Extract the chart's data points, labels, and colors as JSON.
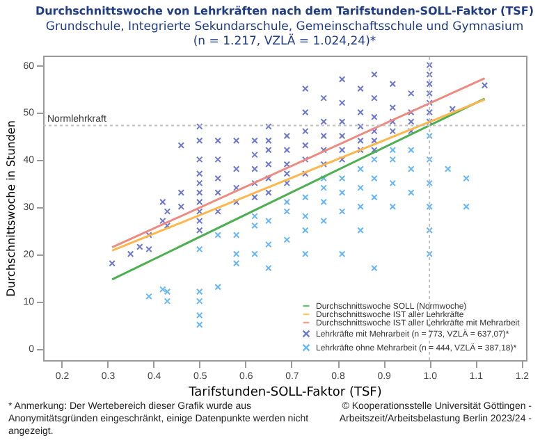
{
  "chart_data": {
    "type": "scatter",
    "title": "Durchschnittswoche  von Lehrkräften nach dem Tarifstunden-SOLL-Faktor  (TSF)",
    "subtitle": "Grundschule, Integrierte Sekundarschule, Gemeinschaftsschule  und Gymnasium\n(n = 1.217, VZLÄ = 1.024,24)*",
    "xlabel": "Tarifstunden-SOLL-Faktor (TSF)",
    "ylabel": "Durchschnittswoche in Stunden",
    "xlim": [
      0.16,
      1.21
    ],
    "ylim": [
      -2.5,
      62
    ],
    "xticks": [
      0.2,
      0.3,
      0.4,
      0.5,
      0.6,
      0.7,
      0.8,
      0.9,
      {
        "value": 1,
        "label": "1.0"
      },
      1.1,
      1.2
    ],
    "yticks": [
      0,
      10,
      20,
      30,
      40,
      50,
      60
    ],
    "grid": false,
    "legend": "bottom right",
    "line_style": "solid",
    "ref_lines": [
      {
        "axis": "y",
        "value": 47.2,
        "label": "Normlehrkraft",
        "color": "#c0c0c0",
        "line_style": "dotted"
      },
      {
        "axis": "x",
        "value": 1,
        "color": "#c0c0c0",
        "line_style": "dotted"
      }
    ],
    "series": [
      {
        "name": "Durchschnittswoche SOLL (Normwoche)",
        "type": "line",
        "color": "#4caf50",
        "x": [
          0.31,
          1.12
        ],
        "values": [
          14.6,
          52.9
        ]
      },
      {
        "name": "Durchschnittswoche IST aller Lehrkräfte",
        "type": "line",
        "color": "#ffb74d",
        "x": [
          0.31,
          1.12
        ],
        "values": [
          20.7,
          52.7
        ]
      },
      {
        "name": "Durchschnittswoche IST aller Lehrkräfte mit Mehrarbeit",
        "type": "line",
        "color": "#ef8a80",
        "x": [
          0.31,
          1.12
        ],
        "values": [
          21.4,
          57.2
        ]
      },
      {
        "name": "Lehrkräfte mit Mehrarbeit (n = 773, VZLÄ = 637,07)*",
        "marker": "cross",
        "color": "#4857c0",
        "x": [
          0.31,
          0.35,
          0.37,
          0.39,
          0.39,
          0.42,
          0.42,
          0.43,
          0.43,
          0.46,
          0.46,
          0.46,
          0.5,
          0.5,
          0.5,
          0.5,
          0.5,
          0.5,
          0.5,
          0.5,
          0.5,
          0.5,
          0.54,
          0.54,
          0.54,
          0.54,
          0.54,
          0.58,
          0.58,
          0.58,
          0.58,
          0.62,
          0.62,
          0.62,
          0.62,
          0.62,
          0.65,
          0.65,
          0.65,
          0.65,
          0.65,
          0.65,
          0.69,
          0.69,
          0.69,
          0.69,
          0.69,
          0.73,
          0.73,
          0.73,
          0.73,
          0.73,
          0.73,
          0.77,
          0.77,
          0.77,
          0.77,
          0.77,
          0.81,
          0.81,
          0.81,
          0.81,
          0.81,
          0.81,
          0.85,
          0.85,
          0.85,
          0.85,
          0.85,
          0.88,
          0.88,
          0.88,
          0.88,
          0.88,
          0.88,
          0.92,
          0.92,
          0.92,
          0.92,
          0.96,
          0.96,
          0.96,
          0.96,
          1,
          1,
          1,
          1,
          1,
          1,
          1,
          1.05,
          1.12
        ],
        "values": [
          18,
          20,
          21.5,
          24,
          21,
          27,
          31,
          29,
          26,
          33,
          43,
          30,
          47,
          44,
          40,
          37,
          35,
          33,
          31,
          29,
          27,
          25,
          44,
          40,
          36,
          33,
          29,
          44,
          38,
          34,
          31,
          44,
          41,
          38,
          35,
          32,
          47,
          44,
          42,
          39,
          36,
          33,
          45,
          42,
          39,
          37,
          35,
          55,
          50,
          46,
          43,
          40,
          37,
          53,
          48,
          45,
          42,
          39,
          57,
          52,
          48,
          45,
          42,
          40,
          55,
          50,
          47,
          44,
          42,
          58,
          53,
          49,
          46,
          44,
          42,
          56,
          51,
          48,
          46,
          54,
          50,
          48,
          46,
          60,
          58,
          56,
          54,
          52,
          50,
          48,
          50.7,
          55.7
        ]
      },
      {
        "name": "Lehrkräfte ohne Mehrarbeit (n = 444, VZLÄ = 387,18)*",
        "marker": "cross",
        "color": "#42a5f5",
        "x": [
          0.39,
          0.42,
          0.43,
          0.43,
          0.5,
          0.5,
          0.5,
          0.5,
          0.5,
          0.54,
          0.54,
          0.58,
          0.58,
          0.58,
          0.62,
          0.62,
          0.62,
          0.65,
          0.65,
          0.65,
          0.69,
          0.69,
          0.69,
          0.73,
          0.73,
          0.73,
          0.73,
          0.77,
          0.77,
          0.77,
          0.77,
          0.81,
          0.81,
          0.81,
          0.81,
          0.85,
          0.85,
          0.85,
          0.85,
          0.88,
          0.88,
          0.88,
          0.88,
          0.92,
          0.92,
          0.92,
          0.92,
          0.96,
          0.96,
          0.96,
          1,
          1,
          1,
          1,
          1,
          1,
          1.04,
          1.08,
          1.08
        ],
        "values": [
          11,
          12.5,
          10,
          12,
          12,
          10,
          7,
          5,
          21,
          13,
          24,
          18,
          24,
          20,
          20,
          26,
          28,
          17,
          22,
          27,
          23,
          29,
          31,
          25,
          28,
          32,
          20,
          27,
          31,
          34,
          36,
          29,
          33,
          36,
          20,
          30,
          34,
          38,
          25,
          32,
          36,
          40,
          17,
          30,
          35,
          40,
          42,
          33,
          38,
          42,
          45,
          40,
          35,
          30,
          25,
          20,
          38,
          36,
          30
        ]
      }
    ],
    "annotations": [
      "*   Anmerkung:  Der Wertebereich  dieser Grafik wurde aus Anonymitätsgründen eingeschränkt, einige Datenpunkte  werden  nicht angezeigt.",
      "© Kooperationsstelle Universität Göttingen - Arbeitszeit/Arbeitsbelastung Berlin 2023/24 -"
    ]
  }
}
